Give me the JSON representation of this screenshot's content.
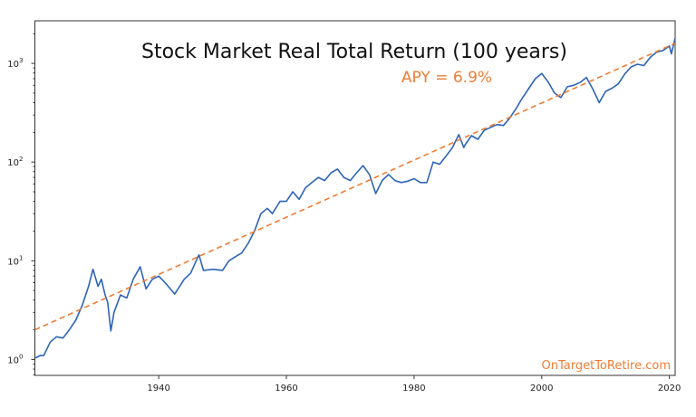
{
  "chart_data": {
    "type": "line",
    "title": "Stock Market Real Total Return (100 years)",
    "annotation": "APY = 6.9%",
    "watermark": "OnTargetToRetire.com",
    "xlabel": "",
    "ylabel": "",
    "xlim": [
      1920.6,
      2020.9
    ],
    "ylim": [
      0.69,
      2700
    ],
    "yscale": "log",
    "grid": false,
    "x_ticks": [
      1940,
      1960,
      1980,
      2000,
      2020
    ],
    "y_ticks": [
      {
        "base": "10",
        "exp": "0",
        "value": 1
      },
      {
        "base": "10",
        "exp": "1",
        "value": 10
      },
      {
        "base": "10",
        "exp": "2",
        "value": 100
      },
      {
        "base": "10",
        "exp": "3",
        "value": 1000
      }
    ],
    "colors": {
      "series": "#2d64b8",
      "trend": "#ee7d35",
      "annotation": "#ee7d35"
    },
    "series": [
      {
        "style": "solid",
        "x": [
          1920.7,
          1921.5,
          1922,
          1923,
          1924,
          1925,
          1926,
          1927,
          1928,
          1929,
          1929.7,
          1930.5,
          1931,
          1931.6,
          1932,
          1932.5,
          1933,
          1934,
          1935,
          1936,
          1937.1,
          1938,
          1939,
          1940,
          1941,
          1942.5,
          1944,
          1945,
          1946.3,
          1947,
          1948.5,
          1950,
          1951,
          1952,
          1953,
          1954,
          1955,
          1956,
          1957,
          1957.8,
          1959,
          1960,
          1961,
          1962,
          1963,
          1964,
          1965,
          1966,
          1967,
          1968,
          1969,
          1970,
          1971,
          1972,
          1973,
          1974,
          1975,
          1976,
          1977,
          1978,
          1979,
          1980,
          1981,
          1982,
          1983,
          1984,
          1985,
          1986,
          1987,
          1987.8,
          1988,
          1989,
          1990,
          1991,
          1992,
          1993,
          1994,
          1995,
          1996,
          1997,
          1998,
          1999,
          2000,
          2001,
          2002,
          2003,
          2004,
          2005,
          2006,
          2007,
          2008,
          2009,
          2010,
          2011,
          2012,
          2013,
          2014,
          2015,
          2016,
          2017,
          2018,
          2019,
          2020,
          2020.3,
          2020.9
        ],
        "y": [
          1.04,
          1.1,
          1.1,
          1.5,
          1.7,
          1.65,
          2.0,
          2.5,
          3.5,
          5.5,
          8.2,
          5.5,
          6.5,
          4.5,
          3.8,
          1.95,
          3.0,
          4.5,
          4.2,
          6.5,
          8.7,
          5.2,
          6.5,
          7.0,
          6.0,
          4.6,
          6.5,
          7.5,
          11.5,
          8.0,
          8.2,
          8.0,
          10,
          11,
          12,
          15,
          20,
          30,
          34,
          30,
          40,
          40,
          50,
          42,
          55,
          62,
          70,
          65,
          78,
          85,
          70,
          65,
          78,
          92,
          75,
          48,
          65,
          75,
          65,
          62,
          64,
          68,
          62,
          62,
          100,
          95,
          115,
          140,
          190,
          140,
          150,
          185,
          170,
          210,
          225,
          240,
          235,
          280,
          350,
          450,
          560,
          700,
          790,
          650,
          500,
          450,
          580,
          600,
          640,
          720,
          550,
          400,
          520,
          560,
          620,
          780,
          920,
          980,
          950,
          1150,
          1300,
          1350,
          1500,
          1250,
          1800
        ]
      },
      {
        "style": "dashed",
        "x": [
          1920.6,
          2020.9
        ],
        "y": [
          2.0,
          1600
        ]
      }
    ]
  }
}
